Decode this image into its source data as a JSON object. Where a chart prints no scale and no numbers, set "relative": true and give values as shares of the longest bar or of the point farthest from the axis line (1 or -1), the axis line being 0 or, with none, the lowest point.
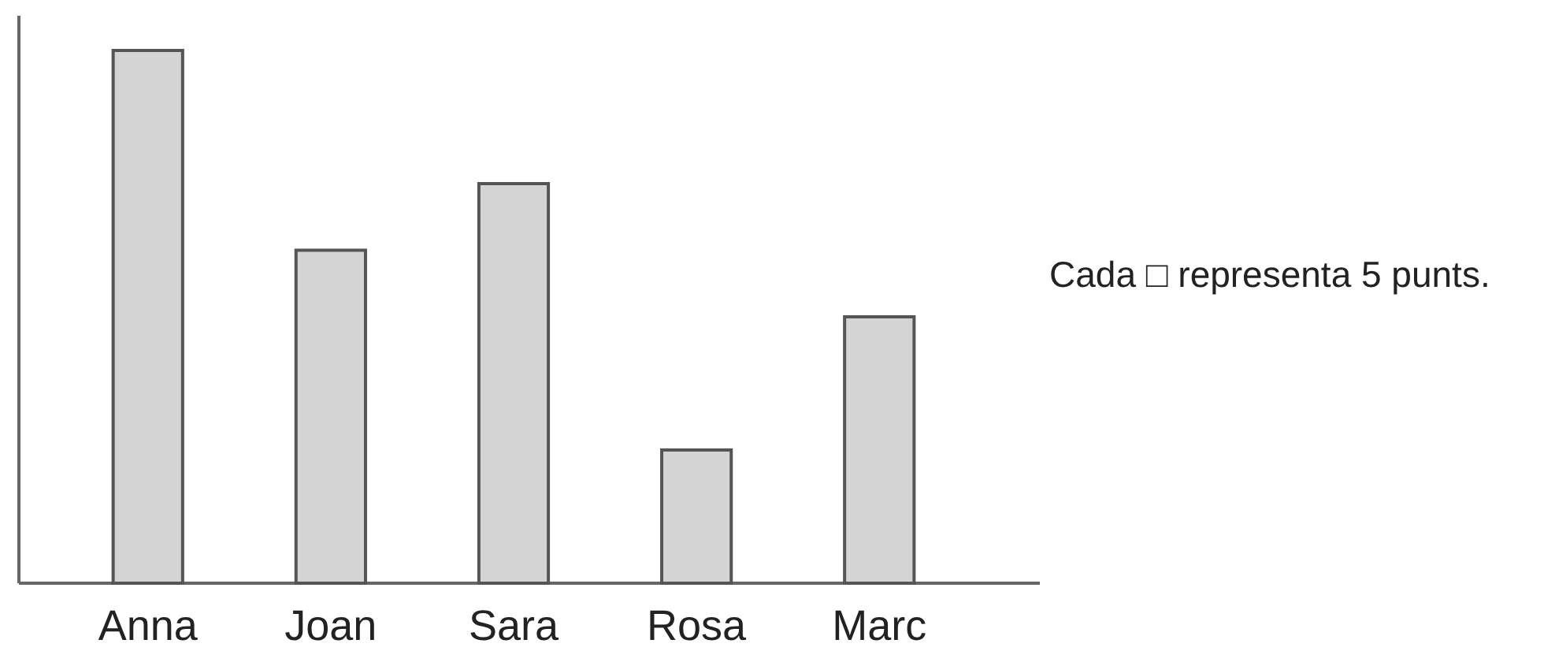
{
  "chart_data": {
    "type": "bar",
    "relative": true,
    "categories": [
      "Anna",
      "Joan",
      "Sara",
      "Rosa",
      "Marc"
    ],
    "values": [
      1,
      0.625,
      0.75,
      0.25,
      0.5
    ],
    "color": "#d4d4d4",
    "annotations": [
      "Cada □ representa 5 punts."
    ]
  }
}
